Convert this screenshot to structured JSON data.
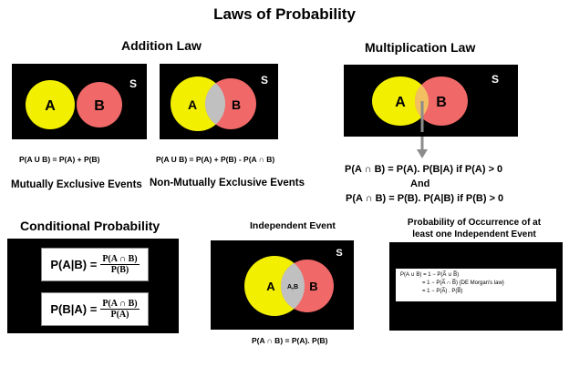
{
  "title": "Laws of Probability",
  "addition": {
    "heading": "Addition Law",
    "venn1": {
      "a": "A",
      "b": "B",
      "s": "S",
      "formula": "P(A U B) = P(A) + P(B)",
      "caption": "Mutually Exclusive Events"
    },
    "venn2": {
      "a": "A",
      "b": "B",
      "s": "S",
      "formula": "P(A U B) = P(A) + P(B) - P(A ∩ B)",
      "caption": "Non-Mutually Exclusive Events"
    }
  },
  "multiplication": {
    "heading": "Multiplication Law",
    "a": "A",
    "b": "B",
    "s": "S",
    "formula1": "P(A ∩ B) = P(A). P(B|A) if P(A) > 0",
    "and": "And",
    "formula2": "P(A ∩ B) = P(B). P(A|B) if P(B) > 0"
  },
  "conditional": {
    "heading": "Conditional Probability",
    "eq1": {
      "lhs": "P(A|B) =",
      "num": "P(A ∩ B)",
      "den": "P(B)"
    },
    "eq2": {
      "lhs": "P(B|A) =",
      "num": "P(A ∩ B)",
      "den": "P(A)"
    }
  },
  "independent": {
    "heading": "Independent Event",
    "a": "A",
    "b": "B",
    "ab": "A,B",
    "s": "S",
    "formula": "P(A ∩ B) = P(A). P(B)"
  },
  "occurrence": {
    "heading_line1": "Probability of Occurrence of at",
    "heading_line2": "least one Independent Event",
    "line1": "P(A ∪ B) = 1 − P(A̅ ∪ B̅)",
    "line2": "= 1 − P(A̅ ∩ B̅)  {DE Morgan's law}",
    "line3": "= 1 − P(A̅) . P(B̅)"
  },
  "colors": {
    "panel": "#000000",
    "circle_a": "#f2ef00",
    "circle_b": "#f06868",
    "overlap": "#c0c0c0",
    "arrow": "#8c8c8c"
  }
}
